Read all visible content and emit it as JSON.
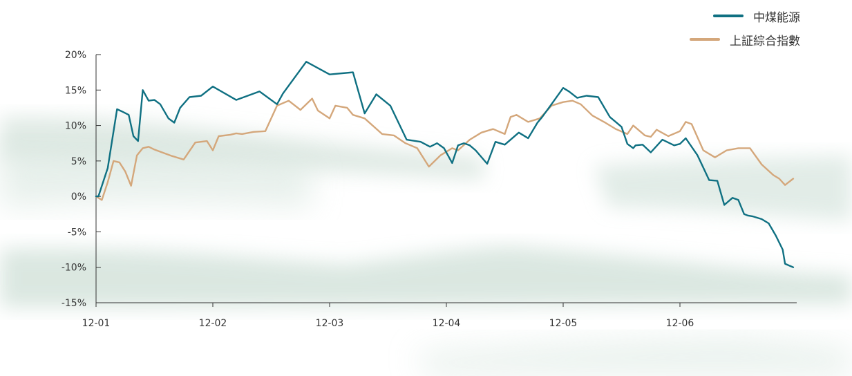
{
  "chart_data": {
    "type": "line",
    "x_categories": [
      "12-01",
      "12-02",
      "12-03",
      "12-04",
      "12-05",
      "12-06"
    ],
    "y_ticks": [
      "20%",
      "15%",
      "10%",
      "5%",
      "0%",
      "-5%",
      "-10%",
      "-15%"
    ],
    "ylim": [
      -15,
      20
    ],
    "grid": false,
    "legend_position": "top-right",
    "series": [
      {
        "name": "中煤能源",
        "color": "#0f7082",
        "x": [
          0.0,
          0.02,
          0.1,
          0.18,
          0.22,
          0.28,
          0.32,
          0.36,
          0.4,
          0.45,
          0.5,
          0.55,
          0.62,
          0.67,
          0.72,
          0.8,
          0.9,
          1.0,
          1.2,
          1.4,
          1.55,
          1.6,
          1.8,
          2.0,
          2.2,
          2.3,
          2.4,
          2.52,
          2.66,
          2.78,
          2.86,
          2.92,
          2.98,
          3.05,
          3.1,
          3.15,
          3.2,
          3.25,
          3.35,
          3.42,
          3.5,
          3.62,
          3.7,
          3.78,
          3.82,
          3.9,
          4.0,
          4.05,
          4.12,
          4.2,
          4.3,
          4.4,
          4.5,
          4.55,
          4.6,
          4.62,
          4.68,
          4.75,
          4.85,
          4.95,
          5.0,
          5.05,
          5.15,
          5.25,
          5.32,
          5.38,
          5.45,
          5.5,
          5.55,
          5.58,
          5.62,
          5.7,
          5.76,
          5.82,
          5.88,
          5.9,
          5.97
        ],
        "y": [
          0.0,
          0.0,
          4.0,
          12.3,
          12.0,
          11.5,
          8.5,
          7.8,
          15.0,
          13.5,
          13.6,
          13.0,
          11.0,
          10.4,
          12.5,
          14.0,
          14.2,
          15.5,
          13.6,
          14.8,
          13.0,
          14.5,
          19.0,
          17.2,
          17.5,
          11.7,
          14.4,
          12.8,
          8.0,
          7.7,
          7.0,
          7.5,
          6.8,
          4.7,
          7.2,
          7.5,
          7.2,
          6.5,
          4.6,
          7.7,
          7.3,
          9.0,
          8.2,
          10.4,
          11.2,
          13.0,
          15.3,
          14.8,
          13.9,
          14.2,
          14.0,
          11.2,
          9.8,
          7.4,
          6.8,
          7.2,
          7.3,
          6.2,
          8.0,
          7.2,
          7.4,
          8.2,
          5.8,
          2.3,
          2.2,
          -1.2,
          -0.2,
          -0.5,
          -2.5,
          -2.7,
          -2.8,
          -3.2,
          -3.8,
          -5.5,
          -7.5,
          -9.5,
          -10.0
        ]
      },
      {
        "name": "上証綜合指數",
        "color": "#d4a77b",
        "x": [
          0.0,
          0.05,
          0.1,
          0.15,
          0.2,
          0.25,
          0.3,
          0.35,
          0.4,
          0.45,
          0.5,
          0.55,
          0.65,
          0.75,
          0.85,
          0.95,
          1.0,
          1.05,
          1.15,
          1.2,
          1.25,
          1.35,
          1.45,
          1.55,
          1.65,
          1.75,
          1.85,
          1.9,
          2.0,
          2.05,
          2.15,
          2.2,
          2.3,
          2.45,
          2.55,
          2.65,
          2.75,
          2.85,
          2.95,
          3.05,
          3.1,
          3.2,
          3.3,
          3.4,
          3.5,
          3.55,
          3.6,
          3.7,
          3.8,
          3.9,
          4.0,
          4.08,
          4.15,
          4.25,
          4.35,
          4.45,
          4.55,
          4.6,
          4.7,
          4.75,
          4.8,
          4.9,
          5.0,
          5.05,
          5.1,
          5.2,
          5.3,
          5.4,
          5.5,
          5.6,
          5.7,
          5.8,
          5.85,
          5.9,
          5.97
        ],
        "y": [
          0.0,
          -0.5,
          2.0,
          5.0,
          4.8,
          3.5,
          1.5,
          5.8,
          6.8,
          7.0,
          6.6,
          6.3,
          5.7,
          5.2,
          7.6,
          7.8,
          6.5,
          8.5,
          8.7,
          8.9,
          8.8,
          9.1,
          9.2,
          12.8,
          13.5,
          12.2,
          13.8,
          12.1,
          11.0,
          12.8,
          12.5,
          11.5,
          11.0,
          8.8,
          8.6,
          7.5,
          6.8,
          4.2,
          5.8,
          6.8,
          6.5,
          8.0,
          9.0,
          9.5,
          8.8,
          11.2,
          11.5,
          10.5,
          11.0,
          12.8,
          13.3,
          13.5,
          13.0,
          11.4,
          10.5,
          9.5,
          8.8,
          10.0,
          8.6,
          8.4,
          9.4,
          8.5,
          9.2,
          10.5,
          10.2,
          6.5,
          5.5,
          6.5,
          6.8,
          6.8,
          4.5,
          3.0,
          2.5,
          1.6,
          2.5
        ]
      }
    ]
  }
}
